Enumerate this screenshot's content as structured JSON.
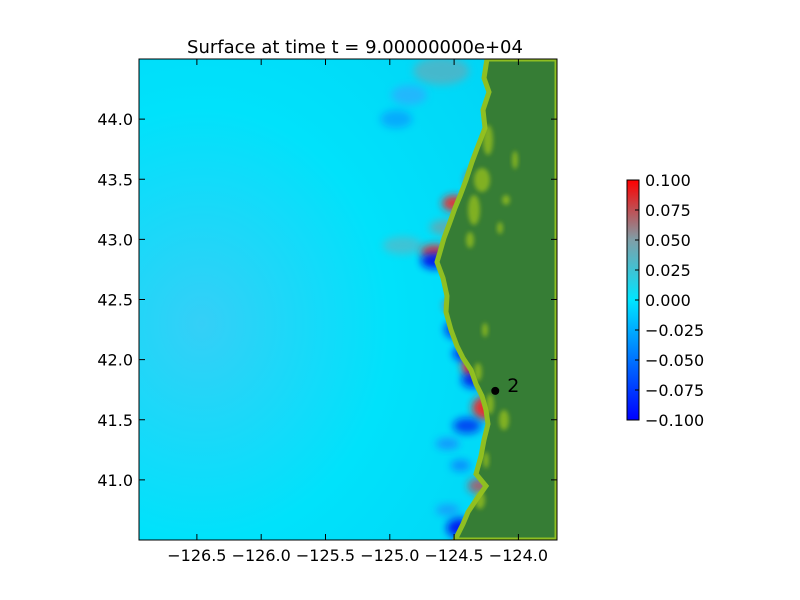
{
  "chart_data": {
    "type": "heatmap",
    "title": "Surface at time t = 9.00000000e+04",
    "xlabel": "",
    "ylabel": "",
    "xlim": [
      -126.95,
      -123.7
    ],
    "ylim": [
      40.5,
      44.5
    ],
    "x_ticks": [
      -126.5,
      -126.0,
      -125.5,
      -125.0,
      -124.5,
      -124.0
    ],
    "x_tick_labels": [
      "−126.5",
      "−126.0",
      "−125.5",
      "−125.0",
      "−124.5",
      "−124.0"
    ],
    "y_ticks": [
      41.0,
      41.5,
      42.0,
      42.5,
      43.0,
      43.5,
      44.0
    ],
    "y_tick_labels": [
      "41.0",
      "41.5",
      "42.0",
      "42.5",
      "43.0",
      "43.5",
      "44.0"
    ],
    "colorbar": {
      "min": -0.1,
      "max": 0.1,
      "ticks": [
        0.1,
        0.075,
        0.05,
        0.025,
        0.0,
        -0.025,
        -0.05,
        -0.075,
        -0.1
      ],
      "tick_labels": [
        "0.100",
        "0.075",
        "0.050",
        "0.025",
        "0.000",
        "−0.025",
        "−0.050",
        "−0.075",
        "−0.100"
      ],
      "colors": [
        "#0000ff",
        "#00e5ff",
        "#ff0000"
      ]
    },
    "field_colors": {
      "ocean": "#00d8f8",
      "land": "#367d35",
      "shore": "#9ac21f",
      "positive": "#ff1a1a",
      "negative": "#0010f0"
    },
    "gauges": [
      {
        "label": "2",
        "lon": -124.18,
        "lat": 41.74
      }
    ],
    "grid": false
  }
}
